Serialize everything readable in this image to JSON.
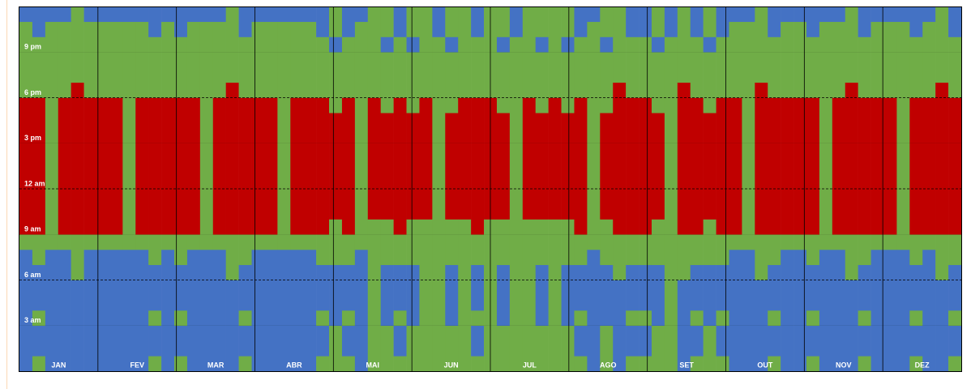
{
  "chart_data": {
    "type": "heatmap",
    "months": [
      "JAN",
      "FEV",
      "MAR",
      "ABR",
      "MAI",
      "JUN",
      "JUL",
      "AGO",
      "SET",
      "OUT",
      "NOV",
      "DEZ"
    ],
    "ylim": [
      0,
      24
    ],
    "yticks": [
      {
        "value": 3,
        "label": "3 am"
      },
      {
        "value": 6,
        "label": "6 am"
      },
      {
        "value": 9,
        "label": "9 am"
      },
      {
        "value": 12,
        "label": "12 am"
      },
      {
        "value": 15,
        "label": "3 pm"
      },
      {
        "value": 18,
        "label": "6 pm"
      },
      {
        "value": 21,
        "label": "9 pm"
      }
    ],
    "colors": {
      "B": "#4472c4",
      "G": "#70ad47",
      "R": "#c00000"
    },
    "columns": [
      "BBBBBBBBGRRRRRRRRRGGGGGB",
      "GBBGBBBGGRRRRRRRRRGGGGBB",
      "BBBBBBBBGGGGGGGGGGGGGGGB",
      "BBBBBBBBGRRRRRRRRRGGGGGB",
      "BBBBBBGGGRRRRRRRRRRGGGGG",
      "BBBBBBBBGRRRRRRRRRGGGGGB",
      "BBBBBBBBGRRRRRRRRRGGGGGB",
      "BBBBBBBBGRRRRRRRRRGGGGGB",
      "BBBBBBBBGGGGGGGGGGGGGGGB",
      "BBBBBBBBGRRRRRRRRRGGGGGB",
      "GBBGBBBGGRRRRRRRRRGGGGBB",
      "BBBBBBBBGRRRRRRRRRGGGGGB",
      "GBBGBBBGGRRRRRRRRRGGGGBB",
      "BBBBBBBBGRRRRRRRRRGGGGGB",
      "BBBBBBBBGGGGGGGGGGGGGGGB",
      "BBBBBBBBGRRRRRRRRRGGGGGB",
      "BBBBBBGGGRRRRRRRRRRGGGGG",
      "GBBGBBBGGRRRRRRRRRGGGGBB",
      "BBBBBBBBGRRRRRRRRRGGGGGB",
      "BBBBBBBBGRRRRRRRRRGGGGGB",
      "BBBBBBBBGGGGGGGGGGGGGGGB",
      "BBBBBBBBGRRRRRRRRRGGGGGB",
      "BBBBBBBBGRRRRRRRRRGGGGGB",
      "GBBGBBBGGRRRRRRRRRGGGGBB",
      "GGGBBBBGGGRRRRRRRGGGGBGG",
      "GBBGBBBGGRRRRRRRRRGGGGBB",
      "BBBBBBBBGGGGGGGGGGGGGGGB",
      "GGGGGGGGGGRRRRRRRRGGGGGG",
      "GGGBBBBGGGRRRRRRRGGGGBGG",
      "GBBGBBBGGRRRRRRRRRGGGGBB",
      "GGGBBBBGGGRRRRRRRGGGGBGG",
      "GGGGGGGGGGRRRRRRRRGGGGGG",
      "GGGGGGGGGGGGGGGGGGGGGGBB",
      "GGGBBBBGGGRRRRRRRGGGGBGG",
      "GGGGGGGGGGRRRRRRRRGGGGGG",
      "GBBGBBBGGRRRRRRRRRGGGGBB",
      "GGGGGGGGGGRRRRRRRRGGGGGG",
      "GGGBBBBGGGRRRRRRRGGGGBGG",
      "GGGGGGGGGGGGGGGGGGGGGGBB",
      "GGGGGGGGGGRRRRRRRRGGGGGG",
      "GGGBBBBGGGRRRRRRRGGGGBGG",
      "GGGGGGGGGGRRRRRRRRGGGGGG",
      "GGGBBBBGGGRRRRRRRGGGGBGG",
      "GBBGBBBGGRRRRRRRRRGGGGBB",
      "BBBBBBBBGGGGGGGGGGGGGGGB",
      "GGGBBBBGGGRRRRRRRGGGGBGG",
      "BBBBBBGGGRRRRRRRRRRGGGGG",
      "GBBGBBBGGRRRRRRRRRGGGGBB",
      "GBBGBBBGGRRRRRRRRRGGGGBB",
      "GGGBBBBGGGRRRRRRRGGGGBGG",
      "GGGGGGGGGGGGGGGGGGGGGGBB",
      "BBBBBBGGGRRRRRRRRRRGGGGG",
      "GBBGBBBGGRRRRRRRRRGGGGBB",
      "GGGBBBBGGGRRRRRRRGGGGBGG",
      "GBBGBBBGGRRRRRRRRRGGGGBB",
      "BBBBBBBBGRRRRRRRRRGGGGGB",
      "BBBBBBBBGGGGGGGGGGGGGGGB",
      "BBBBBBGGGRRRRRRRRRRGGGGG",
      "GBBGBBBGGRRRRRRRRRGGGGBB",
      "BBBBBBBBGRRRRRRRRRGGGGGB",
      "BBBBBBBBGRRRRRRRRRGGGGGB",
      "GBBGBBBGGRRRRRRRRRGGGGBB",
      "BBBBBBBBGGGGGGGGGGGGGGGB",
      "BBBBBBBBGRRRRRRRRRGGGGGB",
      "BBBBBBGGGRRRRRRRRRRGGGGG",
      "GBBGBBBGGRRRRRRRRRGGGGBB",
      "BBBBBBBBGRRRRRRRRRGGGGGB",
      "BBBBBBBBGRRRRRRRRRGGGGGB",
      "BBBBBBBBGGGGGGGGGGGGGGGB",
      "GBBGBBBGGRRRRRRRRRGGGGBB",
      "BBBBBBBBGRRRRRRRRRGGGGGB",
      "BBBBBBGGGRRRRRRRRRRGGGGG",
      "GBBGBBBGGRRRRRRRRRGGGGBB"
    ]
  }
}
